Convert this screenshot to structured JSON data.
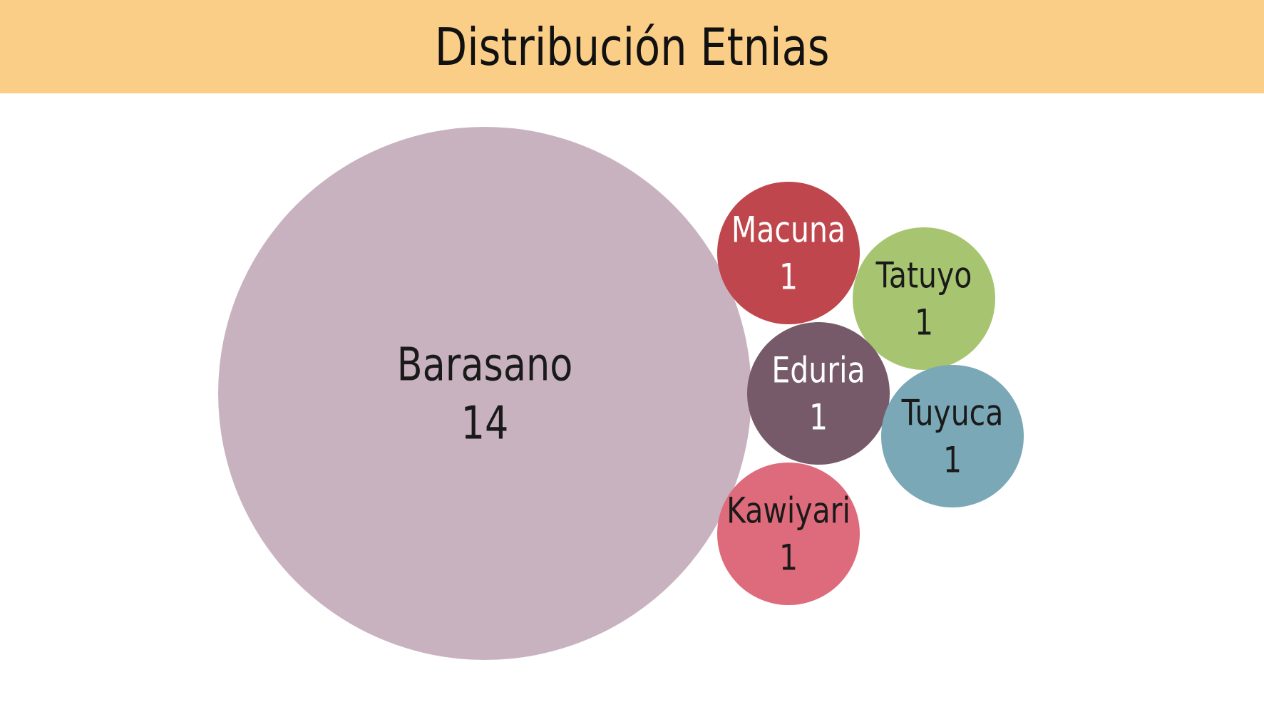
{
  "title": "Distribución Etnias",
  "colors": {
    "title_band": "#FBCE88",
    "background": "#FFFFFF"
  },
  "chart_data": {
    "type": "bubble",
    "title": "Distribución Etnias",
    "series": [
      {
        "name": "Barasano",
        "value": 14,
        "color": "#C9B2BF",
        "text_color": "#1a1a1a"
      },
      {
        "name": "Macuna",
        "value": 1,
        "color": "#BF464C",
        "text_color": "#ffffff"
      },
      {
        "name": "Tatuyo",
        "value": 1,
        "color": "#A7C570",
        "text_color": "#1a1a1a"
      },
      {
        "name": "Eduria",
        "value": 1,
        "color": "#775A69",
        "text_color": "#ffffff"
      },
      {
        "name": "Tuyuca",
        "value": 1,
        "color": "#7BA8B7",
        "text_color": "#1a1a1a"
      },
      {
        "name": "Kawiyari",
        "value": 1,
        "color": "#DD6B7B",
        "text_color": "#1a1a1a"
      }
    ]
  }
}
